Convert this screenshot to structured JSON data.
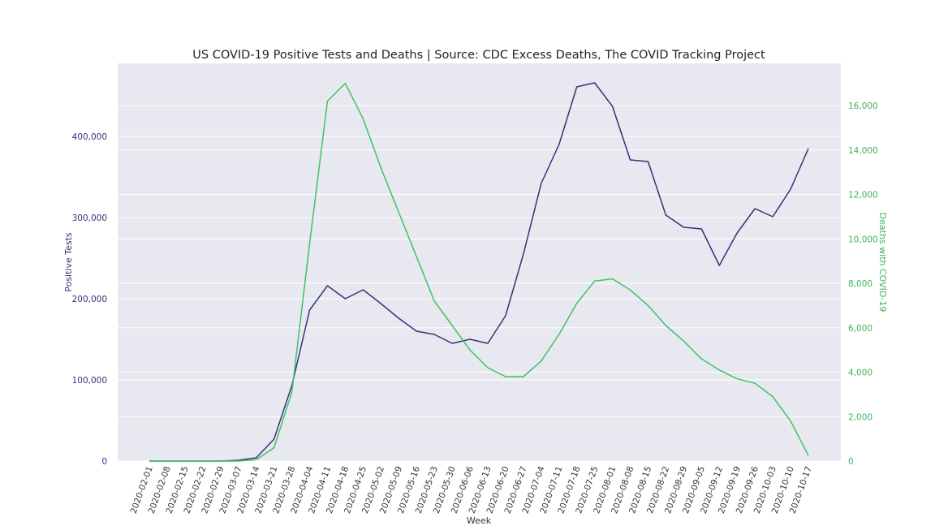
{
  "colors": {
    "background": "#ffffff",
    "plot_background": "#e8e8f0",
    "grid": "#ffffff",
    "positive_tests": "#3a2f7a",
    "deaths": "#3cc461"
  },
  "chart_data": {
    "type": "line",
    "title": "US COVID-19 Positive Tests and Deaths | Source: CDC Excess Deaths, The COVID Tracking Project",
    "xlabel": "Week",
    "ylabel_left": "Positive Tests",
    "ylabel_right": "Deaths with COVID-19",
    "x": [
      "2020-02-01",
      "2020-02-08",
      "2020-02-15",
      "2020-02-22",
      "2020-02-29",
      "2020-03-07",
      "2020-03-14",
      "2020-03-21",
      "2020-03-28",
      "2020-04-04",
      "2020-04-11",
      "2020-04-18",
      "2020-04-25",
      "2020-05-02",
      "2020-05-09",
      "2020-05-16",
      "2020-05-23",
      "2020-05-30",
      "2020-06-06",
      "2020-06-13",
      "2020-06-20",
      "2020-06-27",
      "2020-07-04",
      "2020-07-11",
      "2020-07-18",
      "2020-07-25",
      "2020-08-01",
      "2020-08-08",
      "2020-08-15",
      "2020-08-22",
      "2020-08-29",
      "2020-09-05",
      "2020-09-12",
      "2020-09-19",
      "2020-09-26",
      "2020-10-03",
      "2020-10-10",
      "2020-10-17"
    ],
    "y_left_ticks": [
      "0",
      "100,000",
      "200,000",
      "300,000",
      "400,000"
    ],
    "y_left_tick_values": [
      0,
      100000,
      200000,
      300000,
      400000
    ],
    "y_left_lim": [
      0,
      490000
    ],
    "y_right_ticks": [
      "0",
      "2,000",
      "4,000",
      "6,000",
      "8,000",
      "10,000",
      "12,000",
      "14,000",
      "16,000"
    ],
    "y_right_tick_values": [
      0,
      2000,
      4000,
      6000,
      8000,
      10000,
      12000,
      14000,
      16000
    ],
    "y_right_lim": [
      0,
      17900
    ],
    "grid": true,
    "series": [
      {
        "name": "Positive Tests",
        "axis": "left",
        "values": [
          0,
          0,
          0,
          0,
          0,
          1000,
          4000,
          27000,
          93000,
          186000,
          216000,
          200000,
          211000,
          194000,
          176000,
          160000,
          156000,
          145000,
          150000,
          145000,
          179000,
          255000,
          342000,
          390000,
          461000,
          466000,
          437000,
          371000,
          369000,
          303000,
          288000,
          286000,
          241000,
          281000,
          311000,
          301000,
          335000,
          385000
        ]
      },
      {
        "name": "Deaths with COVID-19",
        "axis": "right",
        "values": [
          0,
          0,
          0,
          0,
          0,
          0,
          60,
          600,
          3100,
          9800,
          16200,
          17000,
          15400,
          13200,
          11200,
          9200,
          7200,
          6100,
          5000,
          4200,
          3800,
          3800,
          4500,
          5700,
          7100,
          8100,
          8200,
          7700,
          7000,
          6100,
          5400,
          4600,
          4100,
          3700,
          3500,
          2900,
          1800,
          250
        ]
      }
    ]
  }
}
